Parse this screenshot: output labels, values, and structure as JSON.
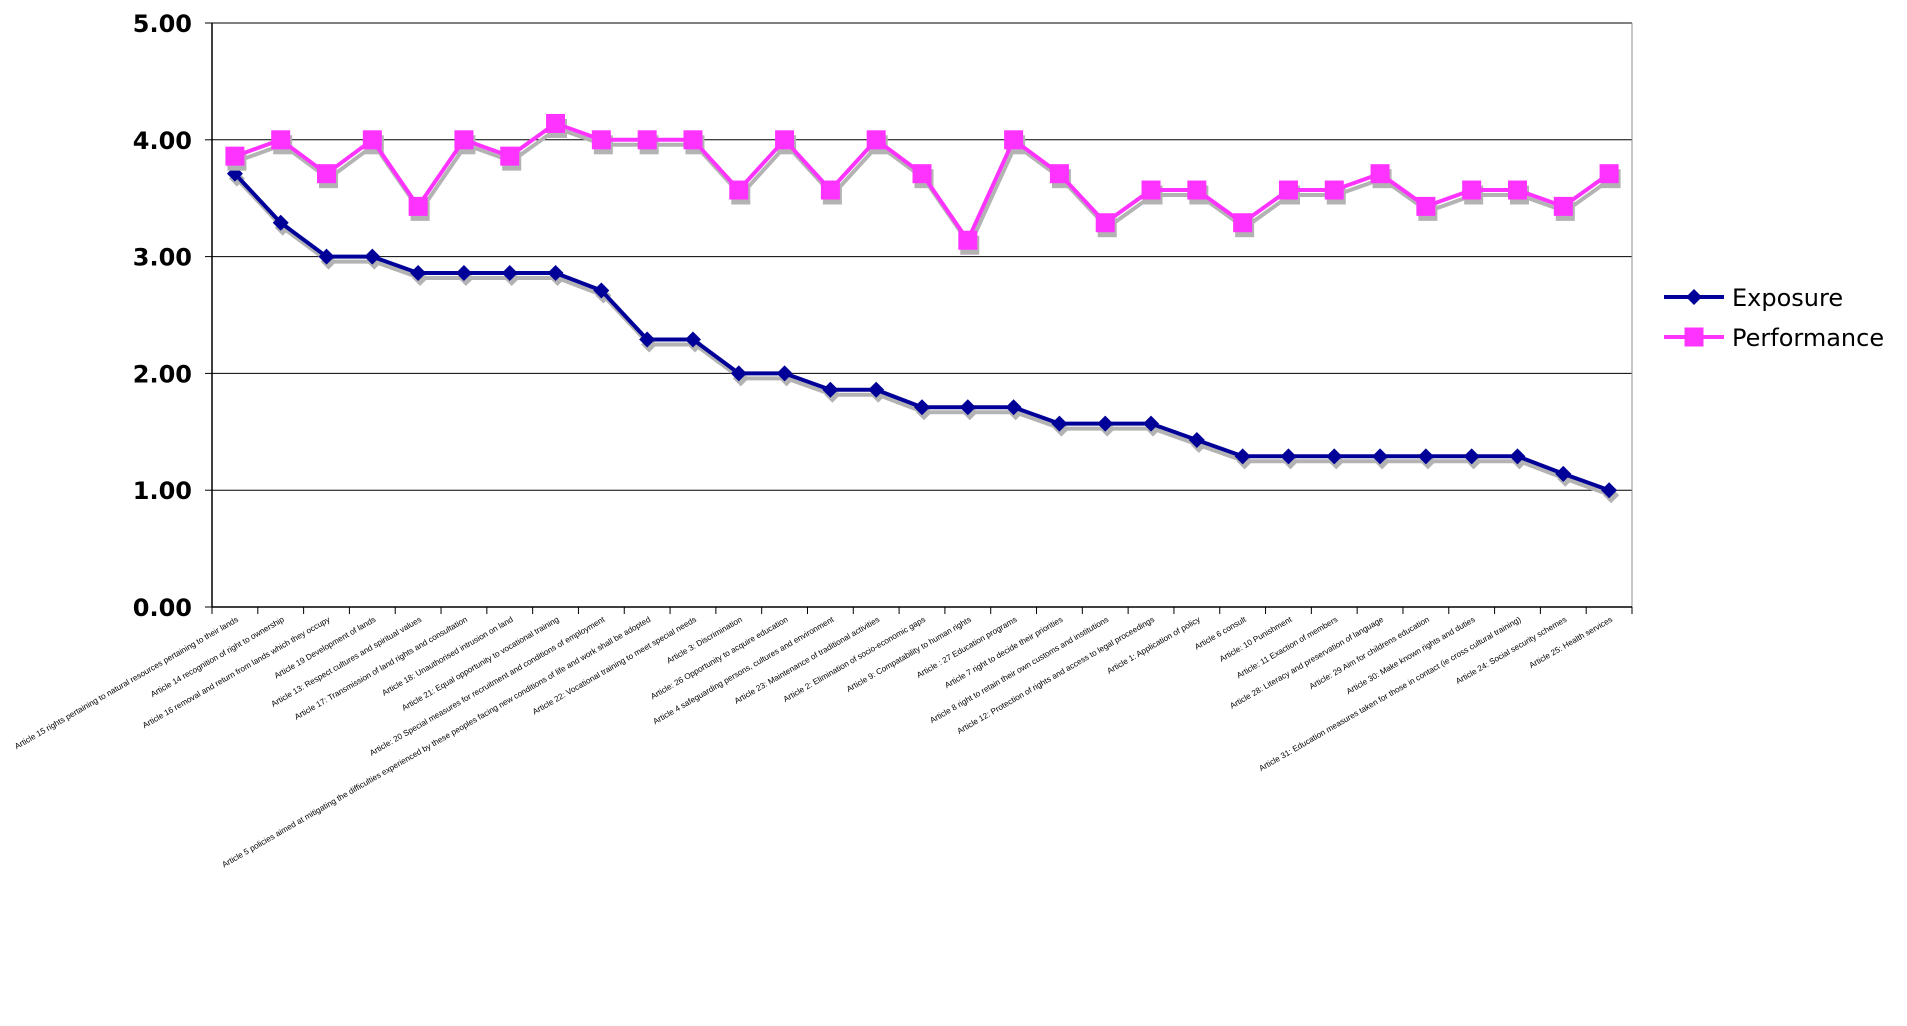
{
  "chart_data": {
    "type": "line",
    "title": "",
    "xlabel": "",
    "ylabel": "",
    "ylim": [
      0,
      5
    ],
    "yticks": [
      "0.00",
      "1.00",
      "2.00",
      "3.00",
      "4.00",
      "5.00"
    ],
    "grid": "horizontal",
    "legend_position": "right",
    "categories": [
      "Article 15 rights pertaining to natural resources pertaining to their lands",
      "Article 14 recognition of right to ownership",
      "Article 16 removal and return from lands which they occupy",
      "Article 19 Development of lands",
      "Article 13: Respect cultures and spiritual values",
      "Article 17: Transmission of land rights and consultation",
      "Article 18: Unauthorised intrusion on land",
      "Article 21: Equal opportunity to vocational training",
      "Article: 20 Special measures for recruitment and conditions of employment",
      "Article 5 policies aimed at mitigating the difficulties experienced by these peoples facing new conditions of life and work shall be adopted",
      "Article 22: Vocational training to meet special needs",
      "Article 3: Discrimination",
      "Article: 26 Opportunity to acquire education",
      "Article 4 safeguarding persons, cultures and environment",
      "Article 23: Maintenance of traditional activities",
      "Article 2: Elimination of socio-economic gaps",
      "Article 9: Compatability to human rights",
      "Article : 27 Education programs",
      "Article 7 right to decide their priorities",
      "Article 8 right to retain their own customs and institutions",
      "Article 12: Protection of rights and access to legal proceedings",
      "Article 1: Application of policy",
      "Article 6 consult",
      "Article: 10 Punishment",
      "Article: 11 Exaction of members",
      "Article 28: Literacy and preservation of language",
      "Article: 29 Aim for childrens education",
      "Article 30: Make known rights and duties",
      "Article 31: Education measures taken for those in contact (ie cross cultural training)",
      "Article 24: Social security schemes",
      "Article 25: Health services"
    ],
    "series": [
      {
        "name": "Exposure",
        "color": "#000099",
        "marker": "diamond",
        "values": [
          3.71,
          3.29,
          3.0,
          3.0,
          2.86,
          2.86,
          2.86,
          2.86,
          2.71,
          2.29,
          2.29,
          2.0,
          2.0,
          1.86,
          1.86,
          1.71,
          1.71,
          1.71,
          1.57,
          1.57,
          1.57,
          1.43,
          1.29,
          1.29,
          1.29,
          1.29,
          1.29,
          1.29,
          1.29,
          1.14,
          1.0
        ]
      },
      {
        "name": "Performance",
        "color": "#FF33FF",
        "marker": "square",
        "values": [
          3.86,
          4.0,
          3.71,
          4.0,
          3.43,
          4.0,
          3.86,
          4.14,
          4.0,
          4.0,
          4.0,
          3.57,
          4.0,
          3.57,
          4.0,
          3.71,
          3.14,
          4.0,
          3.71,
          3.29,
          3.57,
          3.57,
          3.29,
          3.57,
          3.57,
          3.71,
          3.43,
          3.57,
          3.57,
          3.43,
          3.71
        ]
      }
    ]
  }
}
